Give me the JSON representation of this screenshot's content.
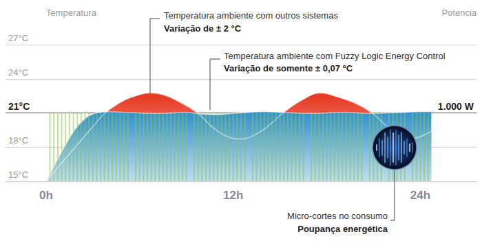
{
  "chart_data": {
    "type": "line",
    "y_label": "Temperatura",
    "y2_label": "Potencia",
    "xlim": [
      -2.6,
      27.6
    ],
    "xticks": [
      {
        "value": 0,
        "label": "0h"
      },
      {
        "value": 12,
        "label": "12h"
      },
      {
        "value": 24,
        "label": "24h"
      }
    ],
    "ylim": [
      15,
      27
    ],
    "yticks": [
      {
        "value": 15,
        "label": "15°C"
      },
      {
        "value": 18,
        "label": "18°C"
      },
      {
        "value": 21,
        "label": "21°C"
      },
      {
        "value": 24,
        "label": "24°C"
      },
      {
        "value": 27,
        "label": "27°C"
      }
    ],
    "y2lim": [
      0,
      2000
    ],
    "y2ticks": [
      {
        "value": 1000,
        "label": "1.000 W"
      }
    ],
    "grid": true,
    "series": [
      {
        "type": "line",
        "color": "#e6361f",
        "annotation": {
          "text": "Temperatura ambiente com outros sistemas",
          "emphasis": "Variação de ± 2 °C"
        },
        "x": [
          0,
          1,
          2,
          3,
          3.8,
          5,
          6,
          6.6,
          7.5,
          8.5,
          9.7,
          11,
          12.4,
          13.8,
          15.2,
          16.5,
          17.6,
          18.7,
          19.9,
          20.9,
          22.2,
          23.6,
          24.7
        ],
        "values": [
          15,
          16.6,
          18.2,
          19.8,
          21,
          22.1,
          22.6,
          22.75,
          22.6,
          22,
          21,
          19.4,
          18.7,
          19.4,
          21,
          22.2,
          22.75,
          22.4,
          21.8,
          21,
          19.5,
          18.8,
          19.4
        ]
      },
      {
        "type": "line",
        "color": "#2e8fd3",
        "annotation": {
          "text": "Temperatura ambiente com Fuzzy Logic Energy Control",
          "emphasis": "Variação de somente ± 0,07 °C"
        },
        "x": [
          0,
          0.5,
          1,
          1.5,
          2,
          2.5,
          3,
          3.5,
          4,
          5,
          6,
          7,
          8,
          9,
          10,
          11,
          12,
          13,
          14,
          15,
          16,
          17,
          18,
          19,
          20,
          21,
          22,
          23,
          24,
          24.7
        ],
        "values": [
          15,
          16.3,
          17.6,
          18.8,
          19.8,
          20.5,
          20.9,
          21.05,
          21.1,
          21.05,
          21,
          20.95,
          21,
          21.05,
          20.9,
          20.85,
          20.95,
          21.05,
          21.1,
          21.05,
          21,
          20.95,
          21,
          21.05,
          21,
          20.95,
          21,
          21.05,
          21.1,
          21.1
        ]
      },
      {
        "type": "bar",
        "color": "#8dc63f",
        "axis": "y2",
        "annotation": {
          "text": "Micro-cortes no consumo",
          "emphasis": "Poupança energética"
        },
        "x": [
          0.25,
          0.5,
          0.75,
          1,
          1.25,
          1.5,
          1.75,
          2,
          2.25,
          2.5,
          2.75,
          3,
          3.25,
          3.5,
          3.75,
          4,
          4.25,
          4.5,
          4.75,
          5,
          5.25,
          5.5,
          5.75,
          6,
          6.25,
          6.5,
          6.75,
          7,
          7.25,
          7.5,
          7.75,
          8,
          8.25,
          8.5,
          8.75,
          9,
          9.25,
          9.5,
          9.75,
          10,
          10.25,
          10.5,
          10.75,
          11,
          11.25,
          11.5,
          11.75,
          12,
          12.25,
          12.5,
          12.75,
          13,
          13.25,
          13.5,
          13.75,
          14,
          14.25,
          14.5,
          14.75,
          15,
          15.25,
          15.5,
          15.75,
          16,
          16.25,
          16.5,
          16.75,
          17,
          17.25,
          17.5,
          17.75,
          18,
          18.25,
          18.5,
          18.75,
          19,
          19.25,
          19.5,
          19.75,
          20,
          20.25,
          20.5,
          20.75,
          21,
          21.25,
          21.5,
          21.75,
          22,
          22.25,
          22.5,
          22.75,
          23,
          23.25,
          23.5,
          23.75,
          24,
          24.25,
          24.5
        ],
        "values": [
          1000,
          1000,
          1000,
          1000,
          1000,
          1000,
          1000,
          1000,
          1000,
          1000,
          1000,
          1000,
          1000,
          1000,
          1000,
          1000,
          1000,
          1000,
          1000,
          1000,
          1000,
          0,
          1000,
          1000,
          1000,
          1000,
          1000,
          1000,
          1000,
          1000,
          1000,
          1000,
          1000,
          1000,
          1000,
          1000,
          0,
          1000,
          1000,
          1000,
          1000,
          1000,
          1000,
          1000,
          1000,
          1000,
          1000,
          1000,
          1000,
          1000,
          1000,
          0,
          1000,
          1000,
          1000,
          1000,
          1000,
          1000,
          1000,
          1000,
          1000,
          1000,
          1000,
          1000,
          1000,
          1000,
          0,
          1000,
          1000,
          1000,
          1000,
          1000,
          1000,
          1000,
          1000,
          1000,
          1000,
          1000,
          1000,
          1000,
          1000,
          0,
          1000,
          1000,
          1000,
          1000,
          0,
          1000,
          1000,
          1000,
          1000,
          1000,
          0,
          1000,
          1000,
          1000,
          1000,
          1000
        ]
      }
    ]
  }
}
